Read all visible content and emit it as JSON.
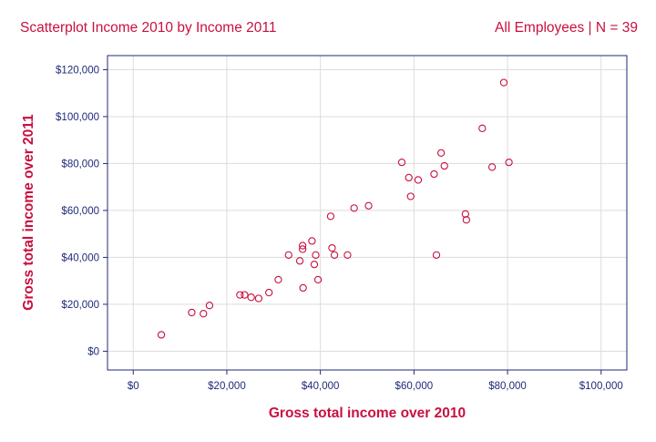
{
  "header": {
    "title": "Scatterplot Income 2010 by Income 2011",
    "subtitle": "All Employees | N = 39"
  },
  "colors": {
    "accent": "#c8103f",
    "axis": "#1f2a7a",
    "grid": "#dcdcdc",
    "plot_background": "#ffffff"
  },
  "chart_data": {
    "type": "scatter",
    "title": "Scatterplot Income 2010 by Income 2011",
    "subtitle": "All Employees | N = 39",
    "xlabel": "Gross total income over 2010",
    "ylabel": "Gross total income over 2011",
    "xlim": [
      -5500,
      105500
    ],
    "ylim": [
      -8000,
      126000
    ],
    "x_ticks": [
      0,
      20000,
      40000,
      60000,
      80000,
      100000
    ],
    "x_tick_labels": [
      "$0",
      "$20,000",
      "$40,000",
      "$60,000",
      "$80,000",
      "$100,000"
    ],
    "y_ticks": [
      0,
      20000,
      40000,
      60000,
      80000,
      100000,
      120000
    ],
    "y_tick_labels": [
      "$0",
      "$20,000",
      "$40,000",
      "$60,000",
      "$80,000",
      "$100,000",
      "$120,000"
    ],
    "grid": true,
    "marker": "open-circle",
    "points": [
      {
        "x": 6000,
        "y": 7000
      },
      {
        "x": 12500,
        "y": 16500
      },
      {
        "x": 15000,
        "y": 16000
      },
      {
        "x": 16300,
        "y": 19500
      },
      {
        "x": 22800,
        "y": 24000
      },
      {
        "x": 23800,
        "y": 24000
      },
      {
        "x": 25200,
        "y": 23000
      },
      {
        "x": 26800,
        "y": 22500
      },
      {
        "x": 29000,
        "y": 25000
      },
      {
        "x": 31000,
        "y": 30500
      },
      {
        "x": 33200,
        "y": 41000
      },
      {
        "x": 35600,
        "y": 38500
      },
      {
        "x": 36200,
        "y": 45000
      },
      {
        "x": 36200,
        "y": 43500
      },
      {
        "x": 36300,
        "y": 27000
      },
      {
        "x": 38200,
        "y": 47000
      },
      {
        "x": 38700,
        "y": 37000
      },
      {
        "x": 39000,
        "y": 41000
      },
      {
        "x": 39500,
        "y": 30500
      },
      {
        "x": 42200,
        "y": 57500
      },
      {
        "x": 42500,
        "y": 44000
      },
      {
        "x": 43000,
        "y": 41000
      },
      {
        "x": 45800,
        "y": 41000
      },
      {
        "x": 47200,
        "y": 61000
      },
      {
        "x": 50300,
        "y": 62000
      },
      {
        "x": 57400,
        "y": 80500
      },
      {
        "x": 58900,
        "y": 74000
      },
      {
        "x": 59300,
        "y": 66000
      },
      {
        "x": 60900,
        "y": 73000
      },
      {
        "x": 64300,
        "y": 75500
      },
      {
        "x": 64800,
        "y": 41000
      },
      {
        "x": 65800,
        "y": 84500
      },
      {
        "x": 66500,
        "y": 79000
      },
      {
        "x": 71000,
        "y": 58500
      },
      {
        "x": 71200,
        "y": 56000
      },
      {
        "x": 74600,
        "y": 95000
      },
      {
        "x": 76700,
        "y": 78500
      },
      {
        "x": 79200,
        "y": 114500
      },
      {
        "x": 80300,
        "y": 80500
      }
    ]
  }
}
